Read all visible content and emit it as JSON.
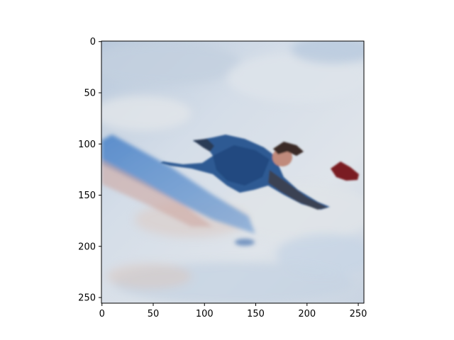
{
  "figure": {
    "image_description_icon": "skier-in-snow-icon",
    "x_ticks": [
      "0",
      "50",
      "100",
      "150",
      "200",
      "250"
    ],
    "y_ticks": [
      "0",
      "50",
      "100",
      "150",
      "200",
      "250"
    ],
    "x_tick_values": [
      0,
      50,
      100,
      150,
      200,
      250
    ],
    "y_tick_values": [
      0,
      50,
      100,
      150,
      200,
      250
    ],
    "xlim": [
      -0.5,
      255.5
    ],
    "ylim": [
      255.5,
      -0.5
    ]
  }
}
